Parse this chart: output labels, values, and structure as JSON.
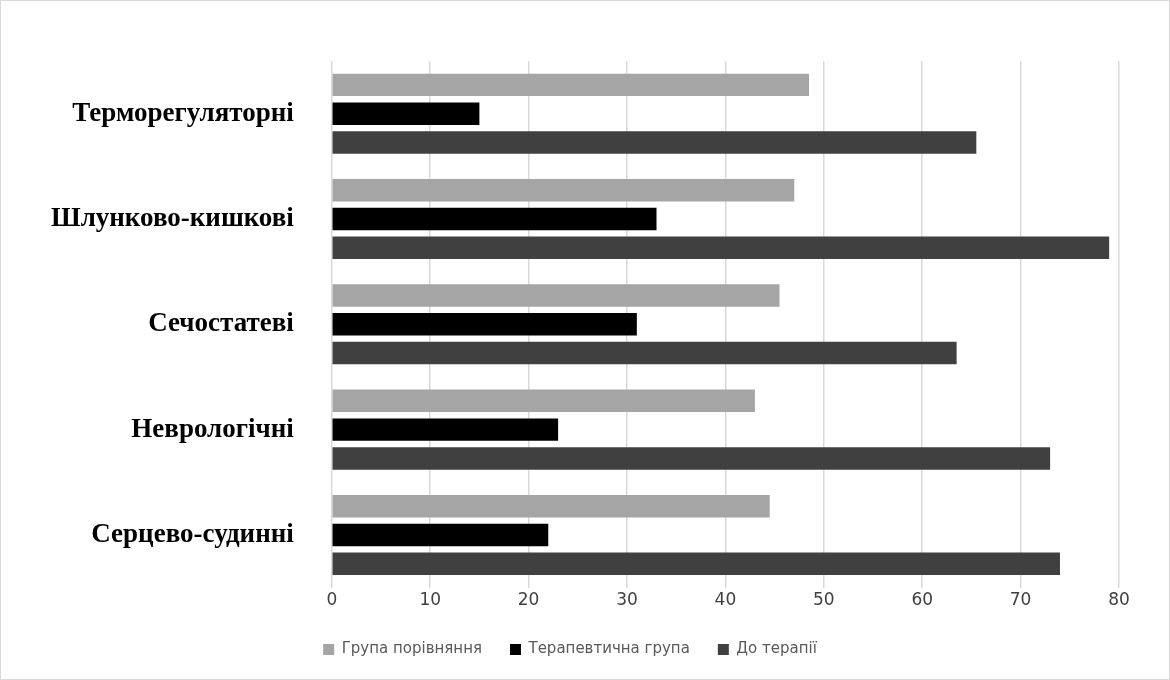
{
  "chart_data": {
    "type": "bar",
    "orientation": "horizontal",
    "categories": [
      "Терморегуляторні",
      "Шлунково-кишкові",
      "Сечостатеві",
      "Неврологічні",
      "Серцево-судинні"
    ],
    "series": [
      {
        "name": "Група порівняння",
        "color": "#a5a5a5",
        "values": [
          48.5,
          47,
          45.5,
          43,
          44.5
        ]
      },
      {
        "name": "Терапевтична група",
        "color": "#000000",
        "values": [
          15,
          33,
          31,
          23,
          22
        ]
      },
      {
        "name": "До терапії",
        "color": "#404040",
        "values": [
          65.5,
          79,
          63.5,
          73,
          74
        ]
      }
    ],
    "xlim": [
      0,
      80
    ],
    "xticks": [
      0,
      10,
      20,
      30,
      40,
      50,
      60,
      70,
      80
    ],
    "grid": "x",
    "legend": "bottom"
  }
}
